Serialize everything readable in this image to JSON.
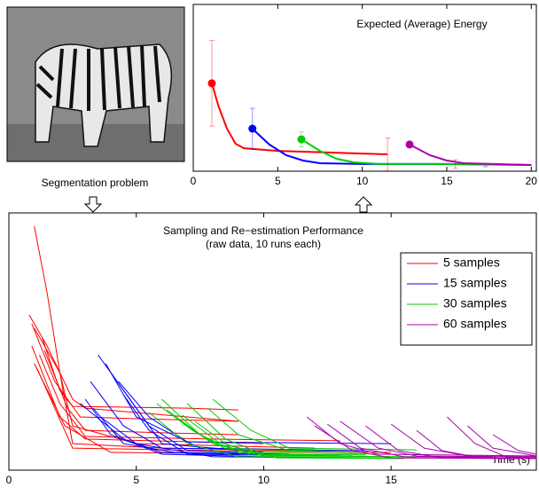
{
  "caption": "Segmentation problem",
  "chart_data": [
    {
      "type": "line",
      "title": "Expected (Average) Energy",
      "xlim": [
        0,
        20.3
      ],
      "ylim": [
        0,
        100
      ],
      "xticks": [
        0,
        5,
        10,
        15,
        20
      ],
      "series": [
        {
          "color": "#ff0000",
          "x": [
            1.1,
            1.5,
            2.0,
            2.5,
            3.0,
            5,
            8,
            11.5
          ],
          "values": [
            52.7,
            38.8,
            25.5,
            16.5,
            13.8,
            12.2,
            11.2,
            10.1
          ],
          "errorbars": {
            "x": [
              1.1,
              11.5
            ],
            "values": [
              52.7,
              10.1
            ],
            "errors": [
              25.7,
              9.8
            ]
          }
        },
        {
          "color": "#0000ff",
          "x": [
            3.5,
            4.5,
            5.5,
            6.5,
            7.5,
            10,
            15,
            20
          ],
          "values": [
            25.5,
            16.0,
            9.6,
            6.4,
            4.8,
            4.3,
            4.3,
            3.7
          ],
          "errorbars": {
            "x": [
              3.5,
              17.3
            ],
            "values": [
              25.5,
              3.7
            ],
            "errors": [
              12.2,
              1.0
            ]
          }
        },
        {
          "color": "#00cc00",
          "x": [
            6.4,
            7.5,
            8.5,
            9.5,
            11,
            15,
            20
          ],
          "values": [
            19.1,
            12.2,
            7.4,
            5.3,
            4.3,
            4.3,
            3.7
          ],
          "errorbars": {
            "x": [
              6.4
            ],
            "values": [
              19.1
            ],
            "errors": [
              4.5
            ]
          }
        },
        {
          "color": "#aa00aa",
          "x": [
            12.8,
            14,
            15,
            16,
            20
          ],
          "values": [
            16.0,
            9.6,
            6.4,
            4.8,
            3.7
          ],
          "errorbars": {
            "x": [
              15.5
            ],
            "values": [
              4.3
            ],
            "errors": [
              2.5
            ]
          }
        }
      ]
    },
    {
      "type": "runs",
      "title": "Sampling and Re−estimation Performance",
      "subtitle": "(raw data, 10 runs each)",
      "x_label": "Time (s)",
      "xlim": [
        0,
        20.7
      ],
      "ylim": [
        0,
        100
      ],
      "xticks": [
        0,
        5,
        10,
        15
      ],
      "legend": "upper right",
      "series": [
        {
          "name": "5 samples",
          "color": "#ff0000",
          "runs": [
            {
              "x": [
                1.0,
                1.5,
                2.0,
                2.5,
                5,
                12
              ],
              "values": [
                94.8,
                69.0,
                37.9,
                17.2,
                10.3,
                8.6
              ]
            },
            {
              "x": [
                0.8,
                1.5,
                2.5,
                3,
                9
              ],
              "values": [
                60.3,
                48.3,
                27.6,
                24.1,
                19.0
              ]
            },
            {
              "x": [
                1.0,
                2.0,
                2.5,
                6,
                15
              ],
              "values": [
                55.2,
                37.9,
                10.3,
                8.6,
                6.9
              ]
            },
            {
              "x": [
                1.3,
                2.0,
                2.5,
                7,
                9
              ],
              "values": [
                51.7,
                31.0,
                24.8,
                24.1,
                23.4
              ]
            },
            {
              "x": [
                0.9,
                2.0,
                3,
                10
              ],
              "values": [
                48.3,
                20.7,
                12.1,
                10.3
              ]
            },
            {
              "x": [
                1.2,
                2,
                3,
                8,
                13
              ],
              "values": [
                44.8,
                25.9,
                13.1,
                12.1,
                11.4
              ]
            },
            {
              "x": [
                1.0,
                2.2,
                4,
                11
              ],
              "values": [
                41.4,
                17.2,
                6.9,
                6.2
              ]
            },
            {
              "x": [
                1.4,
                2.3,
                3,
                6,
                9
              ],
              "values": [
                46.6,
                24.1,
                15.5,
                14.5,
                13.8
              ]
            },
            {
              "x": [
                1.1,
                2.5,
                8,
                14
              ],
              "values": [
                39.7,
                8.6,
                7.6,
                6.9
              ]
            },
            {
              "x": [
                0.9,
                1.8,
                2.8,
                5,
                9
              ],
              "values": [
                56.9,
                34.5,
                20.7,
                20.0,
                19.0
              ]
            }
          ]
        },
        {
          "name": "15 samples",
          "color": "#0000ff",
          "runs": [
            {
              "x": [
                3.5,
                5,
                6,
                10
              ],
              "values": [
                44.8,
                24.1,
                10.3,
                6.9
              ]
            },
            {
              "x": [
                3.2,
                4.5,
                6,
                14
              ],
              "values": [
                34.5,
                17.2,
                8.6,
                7.6
              ]
            },
            {
              "x": [
                4.0,
                5.5,
                7,
                9
              ],
              "values": [
                37.9,
                17.2,
                7.6,
                6.9
              ]
            },
            {
              "x": [
                3.0,
                4,
                6,
                10
              ],
              "values": [
                27.6,
                13.8,
                6.2,
                5.2
              ]
            },
            {
              "x": [
                4.3,
                5.5,
                7,
                15
              ],
              "values": [
                34.5,
                20.7,
                11.0,
                10.3
              ]
            },
            {
              "x": [
                3.3,
                4.5,
                6.5,
                11
              ],
              "values": [
                24.1,
                10.3,
                6.9,
                6.2
              ]
            },
            {
              "x": [
                3.8,
                5,
                7.5,
                12
              ],
              "values": [
                41.4,
                20.7,
                8.6,
                7.9
              ]
            },
            {
              "x": [
                2.8,
                4.5,
                6,
                9
              ],
              "values": [
                25.9,
                12.1,
                6.9,
                6.2
              ]
            },
            {
              "x": [
                4.5,
                5.5,
                7,
                13
              ],
              "values": [
                29.3,
                15.5,
                6.2,
                5.5
              ]
            },
            {
              "x": [
                3.6,
                5,
                8,
                12.5
              ],
              "values": [
                20.7,
                10.3,
                5.2,
                4.8
              ]
            }
          ]
        },
        {
          "name": "30 samples",
          "color": "#00cc00",
          "runs": [
            {
              "x": [
                6.0,
                7.5,
                9,
                15
              ],
              "values": [
                27.6,
                13.8,
                6.9,
                6.2
              ]
            },
            {
              "x": [
                7.0,
                8.5,
                10,
                13
              ],
              "values": [
                25.9,
                12.1,
                6.2,
                5.9
              ]
            },
            {
              "x": [
                5.5,
                7,
                9,
                16
              ],
              "values": [
                22.4,
                10.3,
                5.2,
                4.8
              ]
            },
            {
              "x": [
                7.8,
                9,
                11,
                14
              ],
              "values": [
                24.1,
                13.8,
                7.6,
                6.9
              ]
            },
            {
              "x": [
                6.5,
                8,
                10,
                17
              ],
              "values": [
                20.7,
                10.3,
                5.5,
                5.2
              ]
            },
            {
              "x": [
                5.8,
                7.2,
                8.5,
                12
              ],
              "values": [
                25.9,
                15.5,
                8.3,
                7.6
              ]
            },
            {
              "x": [
                7.3,
                8.6,
                10.5,
                15.5
              ],
              "values": [
                19.0,
                9.7,
                4.8,
                4.5
              ]
            },
            {
              "x": [
                6.2,
                7.8,
                9.5,
                14
              ],
              "values": [
                23.4,
                11.7,
                6.2,
                5.9
              ]
            },
            {
              "x": [
                8.0,
                9.5,
                11,
                16
              ],
              "values": [
                27.6,
                15.5,
                8.6,
                7.9
              ]
            },
            {
              "x": [
                6.8,
                8.2,
                10,
                13.5
              ],
              "values": [
                21.4,
                11.0,
                5.9,
                5.5
              ]
            }
          ]
        },
        {
          "name": "60 samples",
          "color": "#aa00aa",
          "runs": [
            {
              "x": [
                11.7,
                13,
                14.5,
                20.7
              ],
              "values": [
                20.7,
                10.3,
                6.2,
                5.5
              ]
            },
            {
              "x": [
                12.5,
                13.8,
                15.5,
                20.7
              ],
              "values": [
                17.9,
                8.6,
                5.2,
                4.8
              ]
            },
            {
              "x": [
                13.0,
                14.5,
                16,
                19
              ],
              "values": [
                19.0,
                8.6,
                5.5,
                5.2
              ]
            },
            {
              "x": [
                14.0,
                15.3,
                17,
                20.7
              ],
              "values": [
                17.2,
                7.6,
                4.8,
                4.5
              ]
            },
            {
              "x": [
                15.0,
                16.3,
                18,
                20.7
              ],
              "values": [
                17.9,
                8.6,
                5.5,
                5.2
              ]
            },
            {
              "x": [
                16.0,
                17,
                18.5,
                20.7
              ],
              "values": [
                15.5,
                7.6,
                4.8,
                4.5
              ]
            },
            {
              "x": [
                17.2,
                18.3,
                19.5,
                20.7
              ],
              "values": [
                20.7,
                10.3,
                5.2,
                4.8
              ]
            },
            {
              "x": [
                18.0,
                19,
                20.7
              ],
              "values": [
                17.2,
                8.6,
                5.5
              ]
            },
            {
              "x": [
                12.0,
                13.5,
                15,
                20
              ],
              "values": [
                17.2,
                7.6,
                4.8,
                4.5
              ]
            },
            {
              "x": [
                19.0,
                20,
                20.7
              ],
              "values": [
                13.8,
                7.6,
                6.2
              ]
            }
          ]
        }
      ]
    }
  ]
}
